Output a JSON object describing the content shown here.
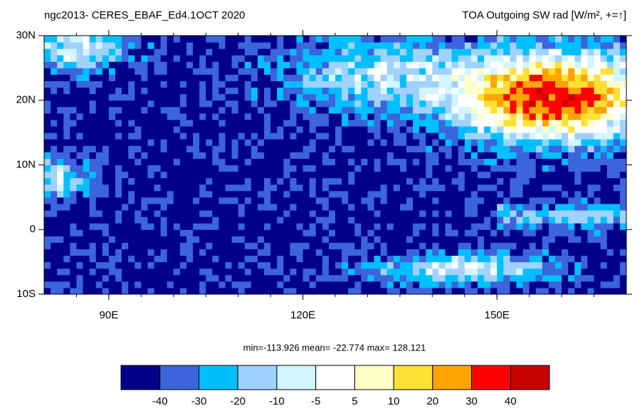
{
  "map": {
    "title_left": "ngc2013- CERES_EBAF_Ed4.1OCT 2020",
    "title_right": "TOA Outgoing SW rad [W/m², +=↑]",
    "lonlim": [
      80,
      170
    ],
    "latlim": [
      -10,
      30
    ],
    "lonticks": [
      {
        "value": 90,
        "label": "90E"
      },
      {
        "value": 120,
        "label": "120E"
      },
      {
        "value": 150,
        "label": "150E"
      }
    ],
    "latticks": [
      {
        "value": 30,
        "label": "30N"
      },
      {
        "value": 20,
        "label": "20N"
      },
      {
        "value": 10,
        "label": "10N"
      },
      {
        "value": 0,
        "label": "0"
      },
      {
        "value": -10,
        "label": "10S"
      }
    ],
    "stats": "min=-113.926  mean= -22.774  max= 128.121",
    "colorbar": {
      "colors": [
        "#00008b",
        "#3c64dc",
        "#00bfff",
        "#9fd2ff",
        "#d2f5ff",
        "#ffffff",
        "#ffffc8",
        "#ffe033",
        "#ffa500",
        "#ff0000",
        "#c80000"
      ],
      "labels": [
        -40,
        -30,
        -20,
        -10,
        -5,
        5,
        10,
        20,
        30,
        40
      ]
    }
  }
}
